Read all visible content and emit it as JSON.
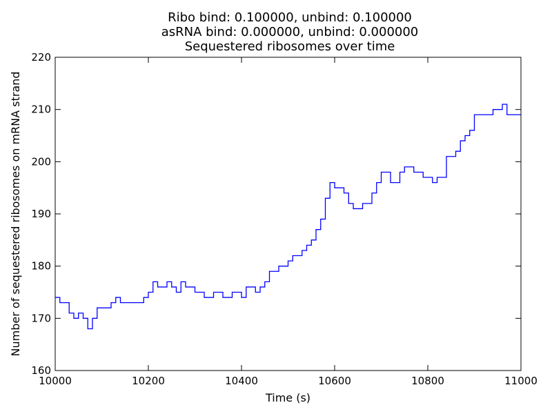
{
  "chart_data": {
    "type": "line",
    "title_lines": [
      "Ribo bind: 0.100000, unbind: 0.100000",
      "asRNA bind: 0.000000, unbind: 0.000000",
      "Sequestered ribosomes over time"
    ],
    "xlabel": "Time (s)",
    "ylabel": "Number of sequestered ribosomes on mRNA strand",
    "xlim": [
      10000,
      11000
    ],
    "xticks": [
      10000,
      10200,
      10400,
      10600,
      10800,
      11000
    ],
    "ylim": [
      160,
      220
    ],
    "yticks": [
      160,
      170,
      180,
      190,
      200,
      210,
      220
    ],
    "grid": false,
    "step": true,
    "x": [
      10000,
      10010,
      10020,
      10030,
      10040,
      10050,
      10060,
      10070,
      10080,
      10090,
      10100,
      10110,
      10120,
      10130,
      10140,
      10150,
      10160,
      10170,
      10180,
      10190,
      10200,
      10210,
      10220,
      10230,
      10240,
      10250,
      10260,
      10270,
      10280,
      10290,
      10300,
      10310,
      10320,
      10330,
      10340,
      10350,
      10360,
      10370,
      10380,
      10390,
      10400,
      10410,
      10420,
      10430,
      10440,
      10450,
      10460,
      10470,
      10480,
      10490,
      10500,
      10510,
      10520,
      10530,
      10540,
      10550,
      10560,
      10570,
      10580,
      10590,
      10600,
      10610,
      10620,
      10630,
      10640,
      10650,
      10660,
      10670,
      10680,
      10690,
      10700,
      10710,
      10720,
      10730,
      10740,
      10750,
      10760,
      10770,
      10780,
      10790,
      10800,
      10810,
      10820,
      10830,
      10840,
      10850,
      10860,
      10870,
      10880,
      10890,
      10900,
      10910,
      10920,
      10930,
      10940,
      10950,
      10960,
      10970,
      10980,
      10990,
      11000
    ],
    "series": [
      {
        "name": "Sequestered ribosomes",
        "color": "#0000ff",
        "values": [
          174,
          173,
          173,
          171,
          170,
          171,
          170,
          168,
          170,
          172,
          172,
          172,
          173,
          174,
          173,
          173,
          173,
          173,
          173,
          174,
          175,
          177,
          176,
          176,
          177,
          176,
          175,
          177,
          176,
          176,
          175,
          175,
          174,
          174,
          175,
          175,
          174,
          174,
          175,
          175,
          174,
          176,
          176,
          175,
          176,
          177,
          179,
          179,
          180,
          180,
          181,
          182,
          182,
          183,
          184,
          185,
          187,
          189,
          193,
          196,
          195,
          195,
          194,
          192,
          191,
          191,
          192,
          192,
          194,
          196,
          198,
          198,
          196,
          196,
          198,
          199,
          199,
          198,
          198,
          197,
          197,
          196,
          197,
          197,
          201,
          201,
          202,
          204,
          205,
          206,
          209,
          209,
          209,
          209,
          210,
          210,
          211,
          209,
          209,
          209,
          209
        ]
      }
    ]
  }
}
